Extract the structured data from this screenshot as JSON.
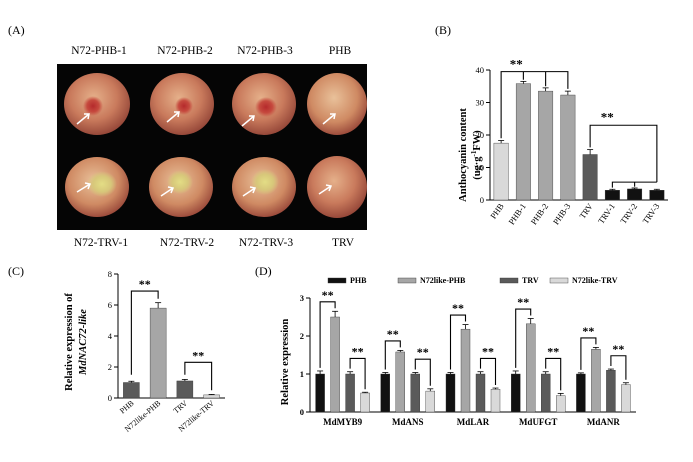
{
  "panel_labels": {
    "a": "(A)",
    "b": "(B)",
    "c": "(C)",
    "d": "(D)"
  },
  "photo": {
    "top_captions": [
      "N72-PHB-1",
      "N72-PHB-2",
      "N72-PHB-3",
      "PHB"
    ],
    "bottom_captions": [
      "N72-TRV-1",
      "N72-TRV-2",
      "N72-TRV-3",
      "TRV"
    ]
  },
  "colors": {
    "black": "#111111",
    "dark_gray": "#5a5a5a",
    "mid_gray": "#a6a6a6",
    "light_gray": "#d9d9d9",
    "white": "#ffffff"
  },
  "chart_data": [
    {
      "id": "B",
      "type": "bar",
      "title": "",
      "ylabel": "Anthocyanin content (ug·g⁻¹FW)",
      "ylabel_line1": "Anthocyanin content",
      "ylabel_line2": "(ug·g",
      "ylabel_sup": "-1",
      "ylabel_line2_end": "FW)",
      "ylim": [
        0,
        40
      ],
      "yticks": [
        0,
        10,
        20,
        30,
        40
      ],
      "categories": [
        "PHB",
        "PHB-1",
        "PHB-2",
        "PHB-3",
        "TRV",
        "TRV-1",
        "TRV-2",
        "TRV-3"
      ],
      "values": [
        17.5,
        35.8,
        33.5,
        32.3,
        14.0,
        3.0,
        3.4,
        3.0
      ],
      "errors": [
        0.8,
        0.7,
        1.0,
        1.2,
        1.5,
        0.3,
        0.3,
        0.3
      ],
      "bar_colors": [
        "#d9d9d9",
        "#a6a6a6",
        "#a6a6a6",
        "#a6a6a6",
        "#5a5a5a",
        "#111111",
        "#111111",
        "#111111"
      ],
      "significance": [
        "**",
        "**"
      ]
    },
    {
      "id": "C",
      "type": "bar",
      "ylabel_line1": "Relative expression of",
      "ylabel_line2": "MdNAC72-like",
      "ylim": [
        0,
        8
      ],
      "yticks": [
        0,
        2,
        4,
        6,
        8
      ],
      "categories": [
        "PHB",
        "N72like-PHB",
        "TRV",
        "N72like-TRV"
      ],
      "values": [
        1.0,
        5.8,
        1.1,
        0.2
      ],
      "errors": [
        0.08,
        0.35,
        0.1,
        0.03
      ],
      "bar_colors": [
        "#5a5a5a",
        "#a6a6a6",
        "#5a5a5a",
        "#d9d9d9"
      ],
      "significance": [
        "**",
        "**"
      ]
    },
    {
      "id": "D",
      "type": "bar",
      "ylabel": "Relative expression",
      "ylim": [
        0,
        3
      ],
      "yticks": [
        0,
        1,
        2,
        3
      ],
      "categories": [
        "MdMYB9",
        "MdANS",
        "MdLAR",
        "MdUFGT",
        "MdANR"
      ],
      "series": [
        {
          "name": "PHB",
          "color": "#111111",
          "values": [
            1.0,
            1.0,
            1.0,
            1.0,
            1.0
          ],
          "errors": [
            0.08,
            0.04,
            0.04,
            0.08,
            0.03
          ]
        },
        {
          "name": "N72like-PHB",
          "color": "#a6a6a6",
          "values": [
            2.5,
            1.58,
            2.18,
            2.32,
            1.65
          ],
          "errors": [
            0.15,
            0.04,
            0.12,
            0.14,
            0.05
          ]
        },
        {
          "name": "TRV",
          "color": "#5a5a5a",
          "values": [
            1.0,
            1.0,
            1.0,
            1.0,
            1.1
          ],
          "errors": [
            0.06,
            0.04,
            0.06,
            0.06,
            0.03
          ]
        },
        {
          "name": "N72like-TRV",
          "color": "#d9d9d9",
          "values": [
            0.5,
            0.55,
            0.6,
            0.43,
            0.72
          ],
          "errors": [
            0.02,
            0.06,
            0.03,
            0.06,
            0.05
          ]
        }
      ],
      "significance": "**"
    }
  ]
}
